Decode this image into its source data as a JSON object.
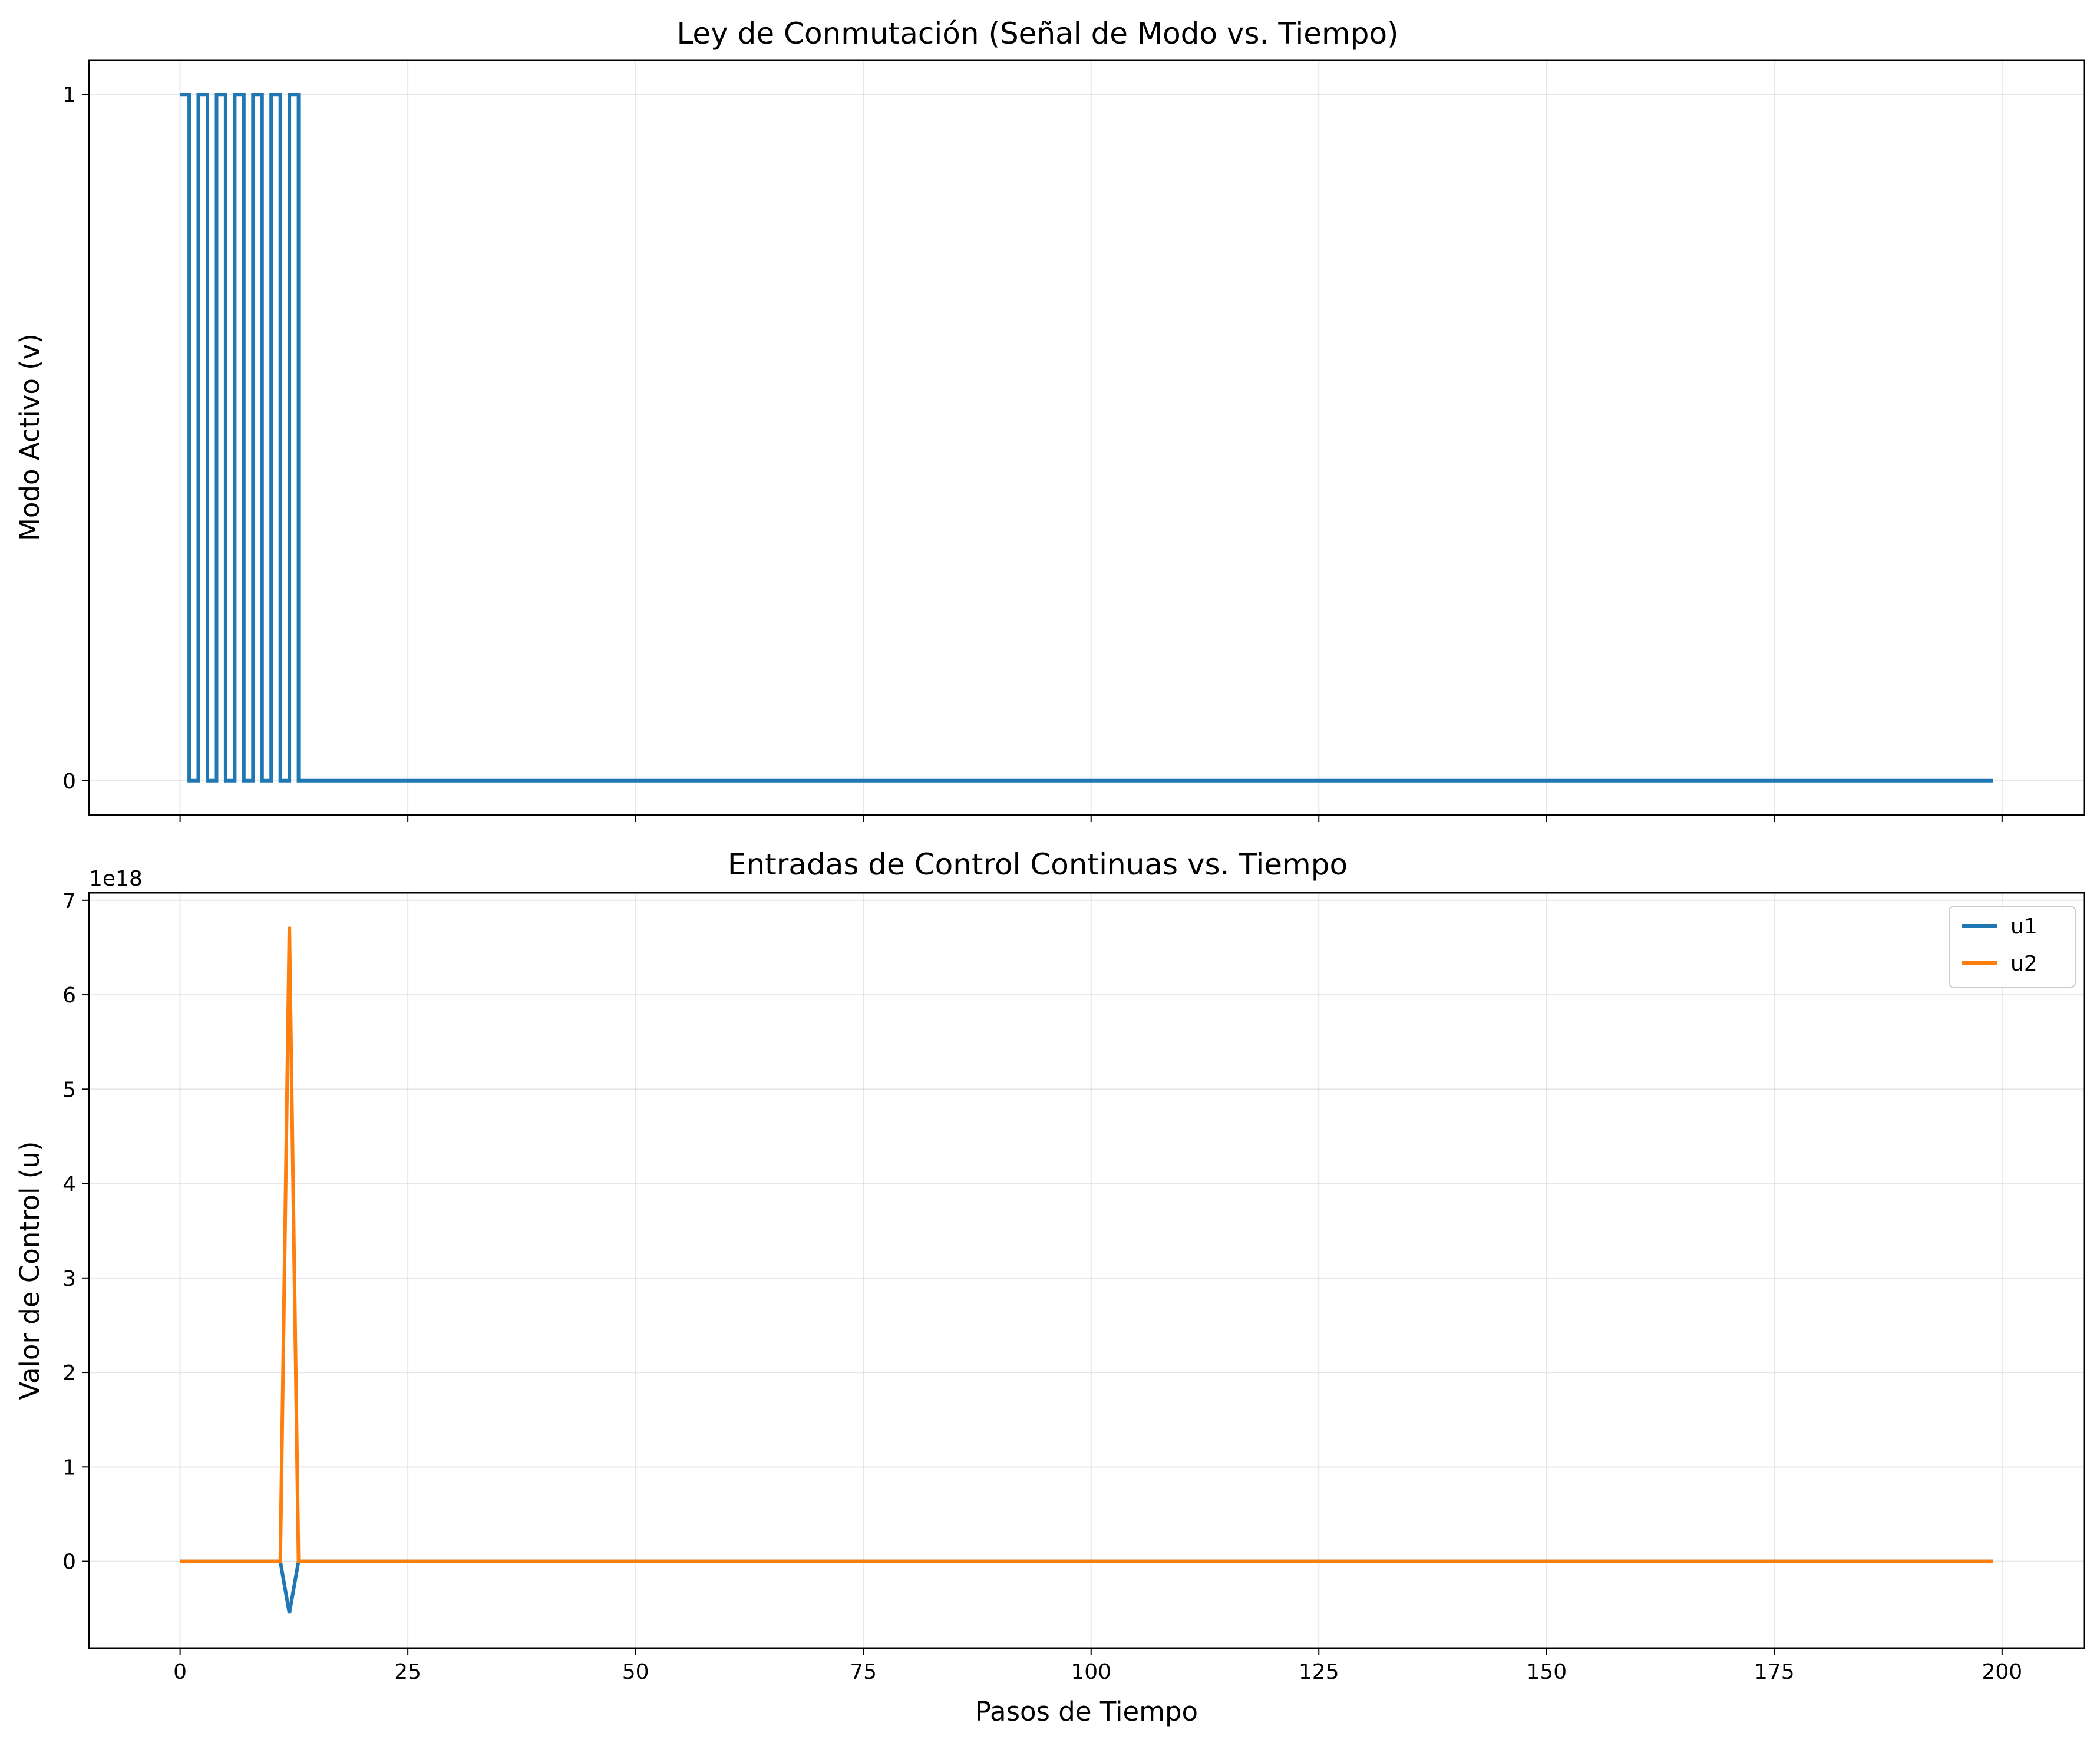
{
  "chart_data": [
    {
      "type": "line",
      "step": true,
      "title": "Ley de Conmutación (Señal de Modo vs. Tiempo)",
      "xlabel": "",
      "ylabel": "Modo Activo (v)",
      "xlim": [
        -10,
        209
      ],
      "ylim": [
        -0.05,
        1.05
      ],
      "xticks": [
        0,
        25,
        50,
        75,
        100,
        125,
        150,
        175,
        200
      ],
      "show_xtick_labels": false,
      "yticks": [
        0,
        1
      ],
      "ytick_labels": [
        "0",
        "1"
      ],
      "grid": true,
      "series": [
        {
          "name": "modo",
          "color": "#1f77b4",
          "x": [
            0,
            1,
            2,
            3,
            4,
            5,
            6,
            7,
            8,
            9,
            10,
            11,
            12,
            13,
            14,
            199
          ],
          "values": [
            1,
            0,
            1,
            0,
            1,
            0,
            1,
            0,
            1,
            0,
            1,
            0,
            1,
            0,
            0,
            0
          ]
        }
      ]
    },
    {
      "type": "line",
      "title": "Entradas de Control Continuas vs. Tiempo",
      "xlabel": "Pasos de Tiempo",
      "ylabel": "Valor de Control (u)",
      "offset_text": "1e18",
      "xlim": [
        -10,
        209
      ],
      "ylim": [
        -0.92,
        7.08
      ],
      "xticks": [
        0,
        25,
        50,
        75,
        100,
        125,
        150,
        175,
        200
      ],
      "xtick_labels": [
        "0",
        "25",
        "50",
        "75",
        "100",
        "125",
        "150",
        "175",
        "200"
      ],
      "yticks": [
        0,
        1,
        2,
        3,
        4,
        5,
        6,
        7
      ],
      "ytick_labels": [
        "0",
        "1",
        "2",
        "3",
        "4",
        "5",
        "6",
        "7"
      ],
      "grid": true,
      "legend": "top-right",
      "series": [
        {
          "name": "u1",
          "color": "#1f77b4",
          "x": [
            0,
            11,
            12,
            13,
            199
          ],
          "values": [
            0,
            0,
            -0.55,
            0,
            0
          ]
        },
        {
          "name": "u2",
          "color": "#ff7f0e",
          "x": [
            0,
            11,
            12,
            13,
            199
          ],
          "values": [
            0,
            0,
            6.72,
            0,
            0
          ]
        }
      ]
    }
  ]
}
